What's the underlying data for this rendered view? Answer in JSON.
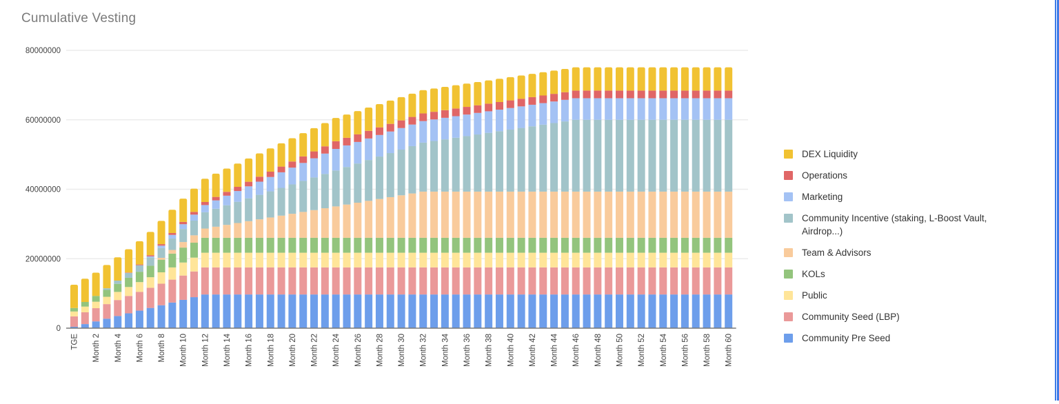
{
  "chart_data": {
    "type": "bar",
    "stacked": true,
    "title": "Cumulative Vesting",
    "xlabel": "",
    "ylabel": "",
    "ylim": [
      0,
      80000000
    ],
    "y_ticks": [
      0,
      20000000,
      40000000,
      60000000,
      80000000
    ],
    "x_tick_step": 2,
    "grid": true,
    "legend_position": "right",
    "legend_order": "reverse-of-stack",
    "categories": [
      "TGE",
      "Month 1",
      "Month 2",
      "Month 3",
      "Month 4",
      "Month 5",
      "Month 6",
      "Month 7",
      "Month 8",
      "Month 9",
      "Month 10",
      "Month 11",
      "Month 12",
      "Month 13",
      "Month 14",
      "Month 15",
      "Month 16",
      "Month 17",
      "Month 18",
      "Month 19",
      "Month 20",
      "Month 21",
      "Month 22",
      "Month 23",
      "Month 24",
      "Month 25",
      "Month 26",
      "Month 27",
      "Month 28",
      "Month 29",
      "Month 30",
      "Month 31",
      "Month 32",
      "Month 33",
      "Month 34",
      "Month 35",
      "Month 36",
      "Month 37",
      "Month 38",
      "Month 39",
      "Month 40",
      "Month 41",
      "Month 42",
      "Month 43",
      "Month 44",
      "Month 45",
      "Month 46",
      "Month 47",
      "Month 48",
      "Month 49",
      "Month 50",
      "Month 51",
      "Month 52",
      "Month 53",
      "Month 54",
      "Month 55",
      "Month 56",
      "Month 57",
      "Month 58",
      "Month 59",
      "Month 60"
    ],
    "series": [
      {
        "name": "Community Pre Seed",
        "color": "#6D9EEB",
        "values": [
          400000,
          1175000,
          1950000,
          2725000,
          3500000,
          4275000,
          5050000,
          5825000,
          6600000,
          7375000,
          8150000,
          8925000,
          9700000,
          9700000,
          9700000,
          9700000,
          9700000,
          9700000,
          9700000,
          9700000,
          9700000,
          9700000,
          9700000,
          9700000,
          9700000,
          9700000,
          9700000,
          9700000,
          9700000,
          9700000,
          9700000,
          9700000,
          9700000,
          9700000,
          9700000,
          9700000,
          9700000,
          9700000,
          9700000,
          9700000,
          9700000,
          9700000,
          9700000,
          9700000,
          9700000,
          9700000,
          9700000,
          9700000,
          9700000,
          9700000,
          9700000,
          9700000,
          9700000,
          9700000,
          9700000,
          9700000,
          9700000,
          9700000,
          9700000,
          9700000,
          9700000
        ]
      },
      {
        "name": "Community Seed (LBP)",
        "color": "#EA9999",
        "values": [
          3000000,
          3400000,
          3800000,
          4200000,
          4600000,
          5000000,
          5400000,
          5800000,
          6200000,
          6600000,
          7000000,
          7400000,
          7800000,
          7800000,
          7800000,
          7800000,
          7800000,
          7800000,
          7800000,
          7800000,
          7800000,
          7800000,
          7800000,
          7800000,
          7800000,
          7800000,
          7800000,
          7800000,
          7800000,
          7800000,
          7800000,
          7800000,
          7800000,
          7800000,
          7800000,
          7800000,
          7800000,
          7800000,
          7800000,
          7800000,
          7800000,
          7800000,
          7800000,
          7800000,
          7800000,
          7800000,
          7800000,
          7800000,
          7800000,
          7800000,
          7800000,
          7800000,
          7800000,
          7800000,
          7800000,
          7800000,
          7800000,
          7800000,
          7800000,
          7800000,
          7800000
        ]
      },
      {
        "name": "Public",
        "color": "#FFE599",
        "values": [
          1400000,
          1635000,
          1870000,
          2105000,
          2340000,
          2575000,
          2810000,
          3045000,
          3280000,
          3515000,
          3750000,
          3985000,
          4220000,
          4220000,
          4220000,
          4220000,
          4220000,
          4220000,
          4220000,
          4220000,
          4220000,
          4220000,
          4220000,
          4220000,
          4220000,
          4220000,
          4220000,
          4220000,
          4220000,
          4220000,
          4220000,
          4220000,
          4220000,
          4220000,
          4220000,
          4220000,
          4220000,
          4220000,
          4220000,
          4220000,
          4220000,
          4220000,
          4220000,
          4220000,
          4220000,
          4220000,
          4220000,
          4220000,
          4220000,
          4220000,
          4220000,
          4220000,
          4220000,
          4220000,
          4220000,
          4220000,
          4220000,
          4220000,
          4220000,
          4220000,
          4220000
        ]
      },
      {
        "name": "KOLs",
        "color": "#93C47D",
        "values": [
          1000000,
          1330000,
          1660000,
          1990000,
          2320000,
          2650000,
          2980000,
          3310000,
          3640000,
          3970000,
          4300000,
          4300000,
          4300000,
          4300000,
          4300000,
          4300000,
          4300000,
          4300000,
          4300000,
          4300000,
          4300000,
          4300000,
          4300000,
          4300000,
          4300000,
          4300000,
          4300000,
          4300000,
          4300000,
          4300000,
          4300000,
          4300000,
          4300000,
          4300000,
          4300000,
          4300000,
          4300000,
          4300000,
          4300000,
          4300000,
          4300000,
          4300000,
          4300000,
          4300000,
          4300000,
          4300000,
          4300000,
          4300000,
          4300000,
          4300000,
          4300000,
          4300000,
          4300000,
          4300000,
          4300000,
          4300000,
          4300000,
          4300000,
          4300000,
          4300000,
          4300000
        ]
      },
      {
        "name": "Team & Advisors",
        "color": "#F9CB9C",
        "values": [
          0,
          0,
          0,
          0,
          0,
          0,
          0,
          0,
          532000,
          1064000,
          1596000,
          2128000,
          2660000,
          3192000,
          3724000,
          4256000,
          4788000,
          5320000,
          5852000,
          6384000,
          6916000,
          7448000,
          7980000,
          8512000,
          9044000,
          9576000,
          10108000,
          10640000,
          11172000,
          11704000,
          12236000,
          12768000,
          13300000,
          13300000,
          13300000,
          13300000,
          13300000,
          13300000,
          13300000,
          13300000,
          13300000,
          13300000,
          13300000,
          13300000,
          13300000,
          13300000,
          13300000,
          13300000,
          13300000,
          13300000,
          13300000,
          13300000,
          13300000,
          13300000,
          13300000,
          13300000,
          13300000,
          13300000,
          13300000,
          13300000,
          13300000
        ]
      },
      {
        "name": "Community Incentive (staking, L-Boost Vault, Airdrop...)",
        "color": "#A2C4C9",
        "values": [
          0,
          0,
          0,
          470000,
          940000,
          1410000,
          1880000,
          2350000,
          2820000,
          3290000,
          3760000,
          4230000,
          4700000,
          5170000,
          5640000,
          6110000,
          6580000,
          7050000,
          7520000,
          7990000,
          8460000,
          8930000,
          9400000,
          9870000,
          10340000,
          10810000,
          11280000,
          11750000,
          12220000,
          12690000,
          13160000,
          13630000,
          14100000,
          14570000,
          15040000,
          15510000,
          15980000,
          16450000,
          16920000,
          17390000,
          17860000,
          18330000,
          18800000,
          19270000,
          19740000,
          20210000,
          20680000,
          20680000,
          20680000,
          20680000,
          20680000,
          20680000,
          20680000,
          20680000,
          20680000,
          20680000,
          20680000,
          20680000,
          20680000,
          20680000,
          20680000
        ]
      },
      {
        "name": "Marketing",
        "color": "#A4C2F4",
        "values": [
          0,
          0,
          0,
          0,
          0,
          0,
          0,
          345000,
          690000,
          1035000,
          1380000,
          1725000,
          2070000,
          2415000,
          2760000,
          3105000,
          3450000,
          3795000,
          4140000,
          4485000,
          4830000,
          5175000,
          5520000,
          5865000,
          6210000,
          6210000,
          6210000,
          6210000,
          6210000,
          6210000,
          6210000,
          6210000,
          6210000,
          6210000,
          6210000,
          6210000,
          6210000,
          6210000,
          6210000,
          6210000,
          6210000,
          6210000,
          6210000,
          6210000,
          6210000,
          6210000,
          6210000,
          6210000,
          6210000,
          6210000,
          6210000,
          6210000,
          6210000,
          6210000,
          6210000,
          6210000,
          6210000,
          6210000,
          6210000,
          6210000,
          6210000
        ]
      },
      {
        "name": "Operations",
        "color": "#E06666",
        "values": [
          0,
          0,
          0,
          0,
          0,
          110000,
          220000,
          330000,
          440000,
          550000,
          660000,
          770000,
          880000,
          990000,
          1100000,
          1210000,
          1320000,
          1430000,
          1540000,
          1650000,
          1760000,
          1870000,
          1980000,
          2090000,
          2200000,
          2200000,
          2200000,
          2200000,
          2200000,
          2200000,
          2200000,
          2200000,
          2200000,
          2200000,
          2200000,
          2200000,
          2200000,
          2200000,
          2200000,
          2200000,
          2200000,
          2200000,
          2200000,
          2200000,
          2200000,
          2200000,
          2200000,
          2200000,
          2200000,
          2200000,
          2200000,
          2200000,
          2200000,
          2200000,
          2200000,
          2200000,
          2200000,
          2200000,
          2200000,
          2200000,
          2200000
        ]
      },
      {
        "name": "DEX Liquidity",
        "color": "#F1C232",
        "values": [
          6700000,
          6700000,
          6700000,
          6700000,
          6700000,
          6700000,
          6700000,
          6700000,
          6700000,
          6700000,
          6700000,
          6700000,
          6700000,
          6700000,
          6700000,
          6700000,
          6700000,
          6700000,
          6700000,
          6700000,
          6700000,
          6700000,
          6700000,
          6700000,
          6700000,
          6700000,
          6700000,
          6700000,
          6700000,
          6700000,
          6700000,
          6700000,
          6700000,
          6700000,
          6700000,
          6700000,
          6700000,
          6700000,
          6700000,
          6700000,
          6700000,
          6700000,
          6700000,
          6700000,
          6700000,
          6700000,
          6700000,
          6700000,
          6700000,
          6700000,
          6700000,
          6700000,
          6700000,
          6700000,
          6700000,
          6700000,
          6700000,
          6700000,
          6700000,
          6700000,
          6700000
        ]
      }
    ]
  }
}
